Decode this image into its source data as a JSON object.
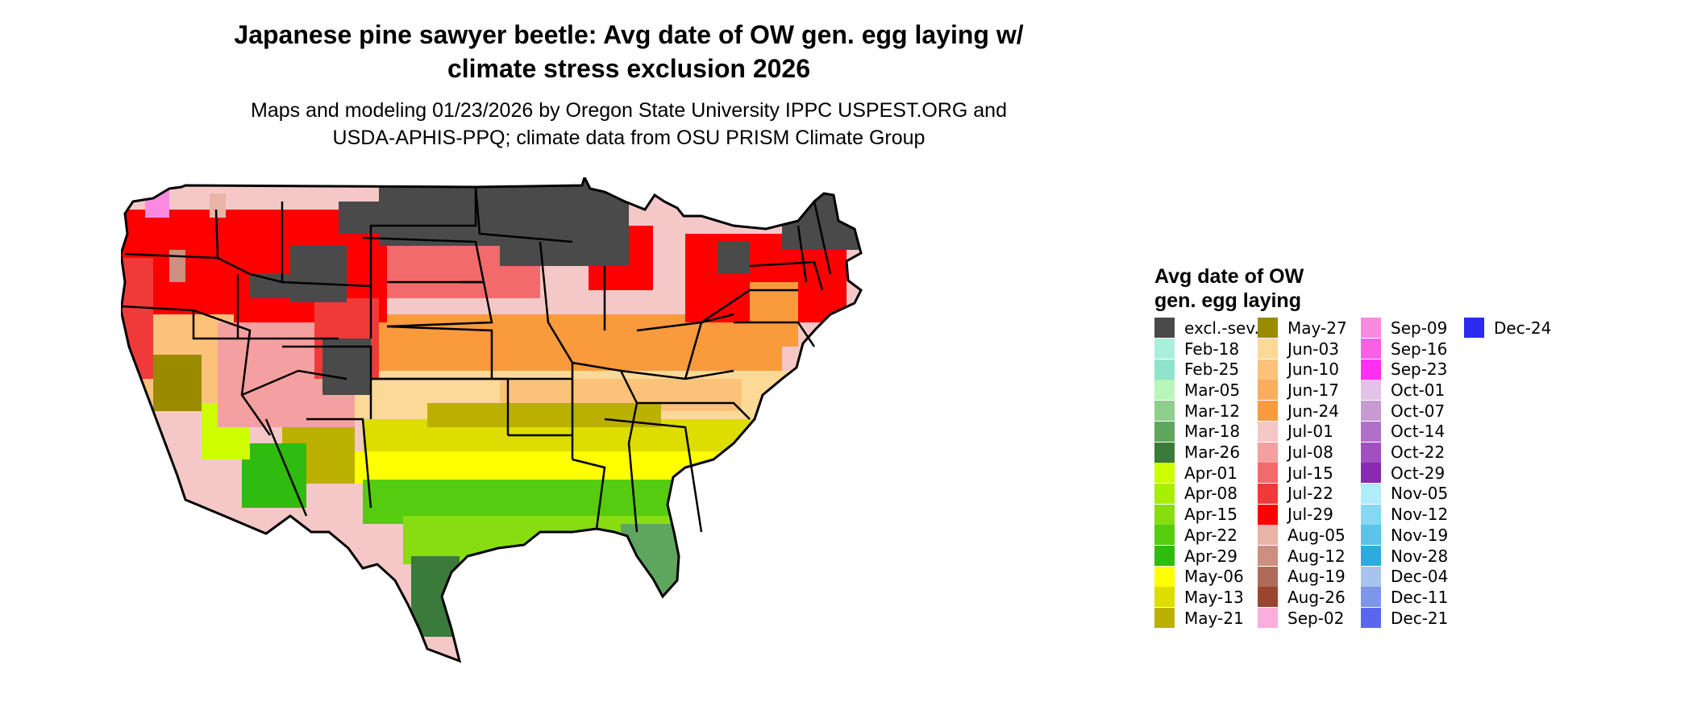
{
  "title_line1": "Japanese pine sawyer beetle: Avg date of OW gen. egg laying w/",
  "title_line2": "climate stress exclusion 2026",
  "subtitle_line1": "Maps and modeling 01/23/2026 by Oregon State University IPPC USPEST.ORG and",
  "subtitle_line2": "USDA-APHIS-PPQ; climate data from OSU PRISM Climate Group",
  "legend": {
    "title_line1": "Avg date of OW",
    "title_line2": "gen. egg laying",
    "items": [
      {
        "label": "excl.-sev.",
        "color": "#4a4a4a"
      },
      {
        "label": "Feb-18",
        "color": "#a8f0dc"
      },
      {
        "label": "Feb-25",
        "color": "#8ee5cc"
      },
      {
        "label": "Mar-05",
        "color": "#b8f5b8"
      },
      {
        "label": "Mar-12",
        "color": "#8ecf8e"
      },
      {
        "label": "Mar-18",
        "color": "#5ea65e"
      },
      {
        "label": "Mar-26",
        "color": "#3a7a3a"
      },
      {
        "label": "Apr-01",
        "color": "#ccff00"
      },
      {
        "label": "Apr-08",
        "color": "#a8ee00"
      },
      {
        "label": "Apr-15",
        "color": "#88dd10"
      },
      {
        "label": "Apr-22",
        "color": "#55cc10"
      },
      {
        "label": "Apr-29",
        "color": "#2fbb10"
      },
      {
        "label": "May-06",
        "color": "#ffff00"
      },
      {
        "label": "May-13",
        "color": "#dddd00"
      },
      {
        "label": "May-21",
        "color": "#bbb000"
      },
      {
        "label": "May-27",
        "color": "#9a8a00"
      },
      {
        "label": "Jun-03",
        "color": "#fcd997"
      },
      {
        "label": "Jun-10",
        "color": "#fcc27a"
      },
      {
        "label": "Jun-17",
        "color": "#fbad5e"
      },
      {
        "label": "Jun-24",
        "color": "#f99a3c"
      },
      {
        "label": "Jul-01",
        "color": "#f5c8c8"
      },
      {
        "label": "Jul-08",
        "color": "#f5a0a0"
      },
      {
        "label": "Jul-15",
        "color": "#f26b6b"
      },
      {
        "label": "Jul-22",
        "color": "#f03a3a"
      },
      {
        "label": "Jul-29",
        "color": "#ff0000"
      },
      {
        "label": "Aug-05",
        "color": "#e8b4a8"
      },
      {
        "label": "Aug-12",
        "color": "#cc8f80"
      },
      {
        "label": "Aug-19",
        "color": "#b06a5a"
      },
      {
        "label": "Aug-26",
        "color": "#9a4530"
      },
      {
        "label": "Sep-02",
        "color": "#f9aede"
      },
      {
        "label": "Sep-09",
        "color": "#f98ae0"
      },
      {
        "label": "Sep-16",
        "color": "#f960e6"
      },
      {
        "label": "Sep-23",
        "color": "#ff30f0"
      },
      {
        "label": "Oct-01",
        "color": "#e2c2e6"
      },
      {
        "label": "Oct-07",
        "color": "#c89ad2"
      },
      {
        "label": "Oct-14",
        "color": "#b070c8"
      },
      {
        "label": "Oct-22",
        "color": "#a050c0"
      },
      {
        "label": "Oct-29",
        "color": "#8a2ab0"
      },
      {
        "label": "Nov-05",
        "color": "#b0ecfa"
      },
      {
        "label": "Nov-12",
        "color": "#86d8f2"
      },
      {
        "label": "Nov-19",
        "color": "#5cc2e8"
      },
      {
        "label": "Nov-28",
        "color": "#30aade"
      },
      {
        "label": "Dec-04",
        "color": "#a8c4ee"
      },
      {
        "label": "Dec-11",
        "color": "#7c96ea"
      },
      {
        "label": "Dec-21",
        "color": "#5a66ee"
      },
      {
        "label": "Dec-24",
        "color": "#2a2af0"
      }
    ]
  }
}
